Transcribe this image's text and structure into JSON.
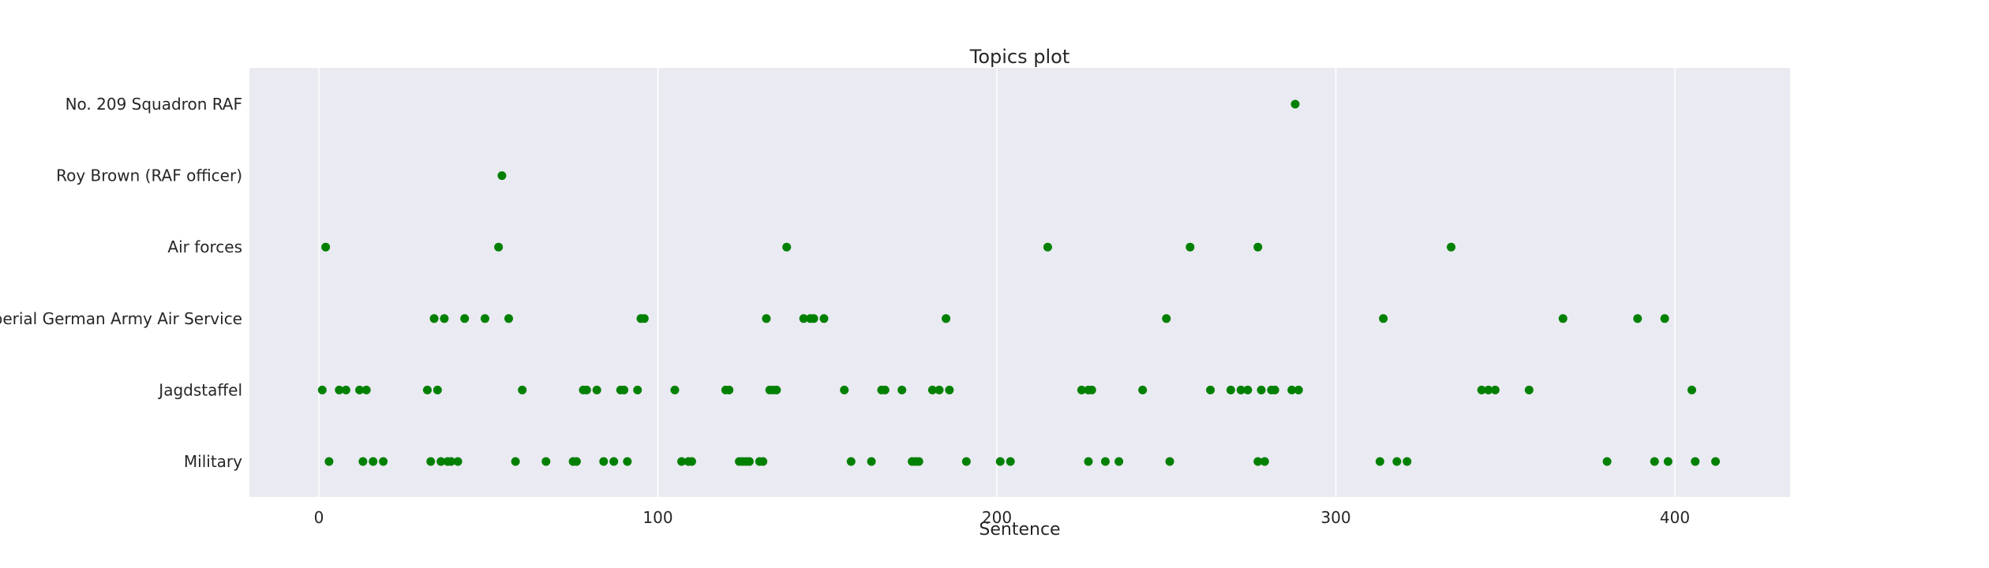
{
  "chart_data": {
    "type": "scatter",
    "title": "Topics plot",
    "xlabel": "Sentence",
    "ylabel": "",
    "xlim": [
      -21,
      434
    ],
    "xticks": [
      0,
      100,
      200,
      300,
      400
    ],
    "grid": "vertical",
    "background": "#eaeaf2",
    "marker_color": "#008000",
    "categories": [
      "Military",
      "Jagdstaffel",
      "Imperial German Army Air Service",
      "Air forces",
      "Roy Brown (RAF officer)",
      "No. 209 Squadron RAF"
    ],
    "series": [
      {
        "category": "Military",
        "x": [
          3,
          13,
          16,
          19,
          33,
          36,
          38,
          39,
          41,
          58,
          67,
          75,
          76,
          84,
          87,
          91,
          107,
          109,
          110,
          124,
          125,
          126,
          127,
          130,
          131,
          157,
          163,
          175,
          176,
          177,
          191,
          201,
          204,
          227,
          232,
          236,
          251,
          277,
          279,
          313,
          318,
          321,
          380,
          394,
          398,
          406,
          412
        ]
      },
      {
        "category": "Jagdstaffel",
        "x": [
          1,
          6,
          8,
          12,
          14,
          32,
          35,
          60,
          78,
          79,
          82,
          89,
          90,
          94,
          105,
          120,
          121,
          133,
          134,
          135,
          155,
          166,
          167,
          172,
          181,
          183,
          186,
          225,
          227,
          228,
          243,
          263,
          269,
          272,
          274,
          278,
          281,
          282,
          287,
          289,
          343,
          345,
          347,
          357,
          405
        ]
      },
      {
        "category": "Imperial German Army Air Service",
        "x": [
          34,
          37,
          43,
          49,
          56,
          95,
          96,
          132,
          143,
          145,
          146,
          149,
          185,
          250,
          314,
          367,
          389,
          397
        ]
      },
      {
        "category": "Air forces",
        "x": [
          2,
          53,
          138,
          215,
          257,
          277,
          334
        ]
      },
      {
        "category": "Roy Brown (RAF officer)",
        "x": [
          54
        ]
      },
      {
        "category": "No. 209 Squadron RAF",
        "x": [
          288
        ]
      }
    ]
  }
}
